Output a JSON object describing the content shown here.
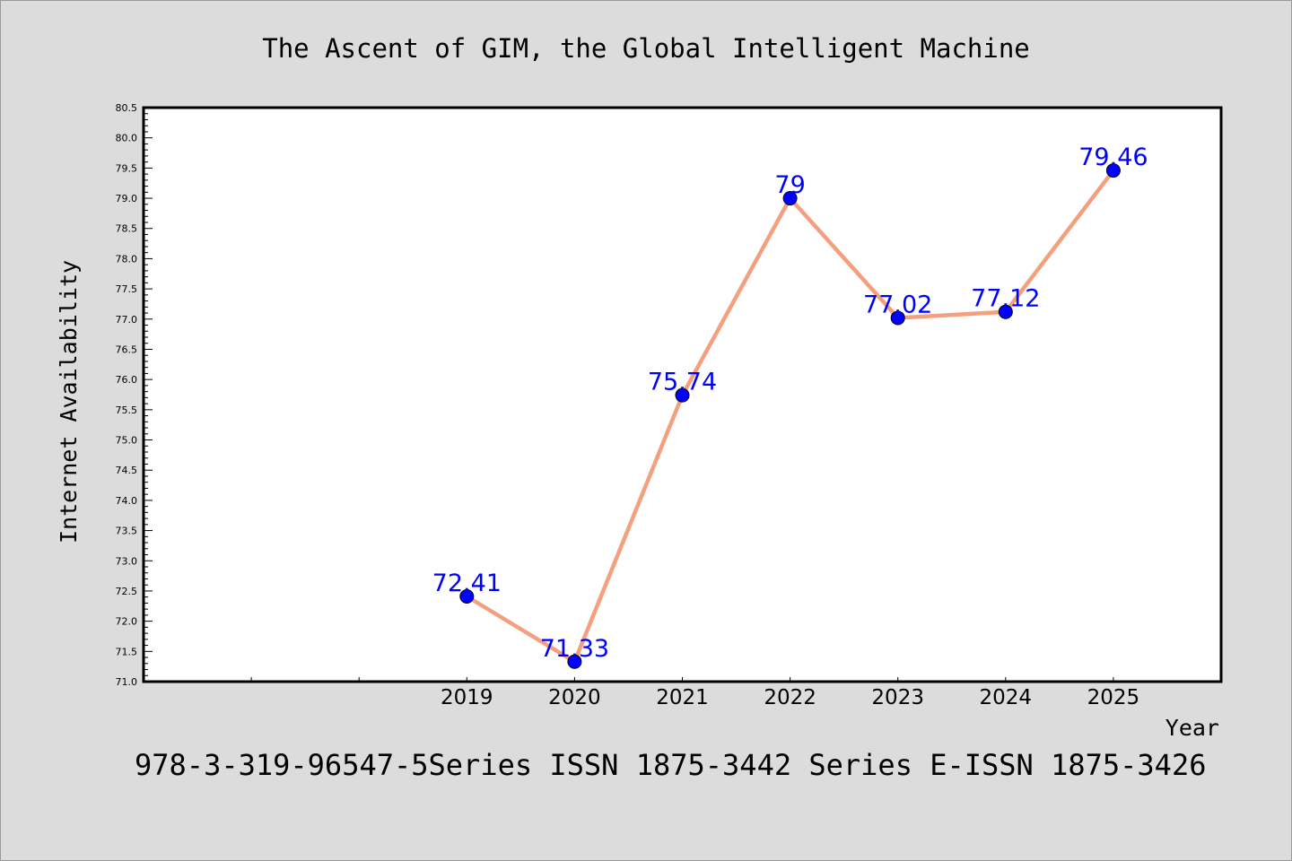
{
  "chart_data": {
    "type": "line",
    "title": "The Ascent of GIM, the Global Intelligent Machine",
    "xlabel": "Year",
    "ylabel": "Internet Availability",
    "categories": [
      "2019",
      "2020",
      "2021",
      "2022",
      "2023",
      "2024",
      "2025"
    ],
    "series": [
      {
        "values": [
          72.41,
          71.33,
          75.74,
          79,
          77.02,
          77.12,
          79.46
        ],
        "labels": [
          "72.41",
          "71.33",
          "75.74",
          "79",
          "77.02",
          "77.12",
          "79.46"
        ]
      }
    ],
    "x_slots": 10,
    "first_category_slot": 3,
    "ylim": [
      71.0,
      80.5
    ],
    "yticks": [
      "71.0",
      "71.5",
      "72.0",
      "72.5",
      "73.0",
      "73.5",
      "74.0",
      "74.5",
      "75.0",
      "75.5",
      "76.0",
      "76.5",
      "77.0",
      "77.5",
      "78.0",
      "78.5",
      "79.0",
      "79.5",
      "80.0",
      "80.5"
    ],
    "grid": false,
    "line_color": "#f4a07f",
    "marker_color": "#0000ff",
    "label_color": "#0000ff"
  },
  "footer": "978-3-319-96547-5Series ISSN 1875-3442 Series E-ISSN 1875-3426"
}
